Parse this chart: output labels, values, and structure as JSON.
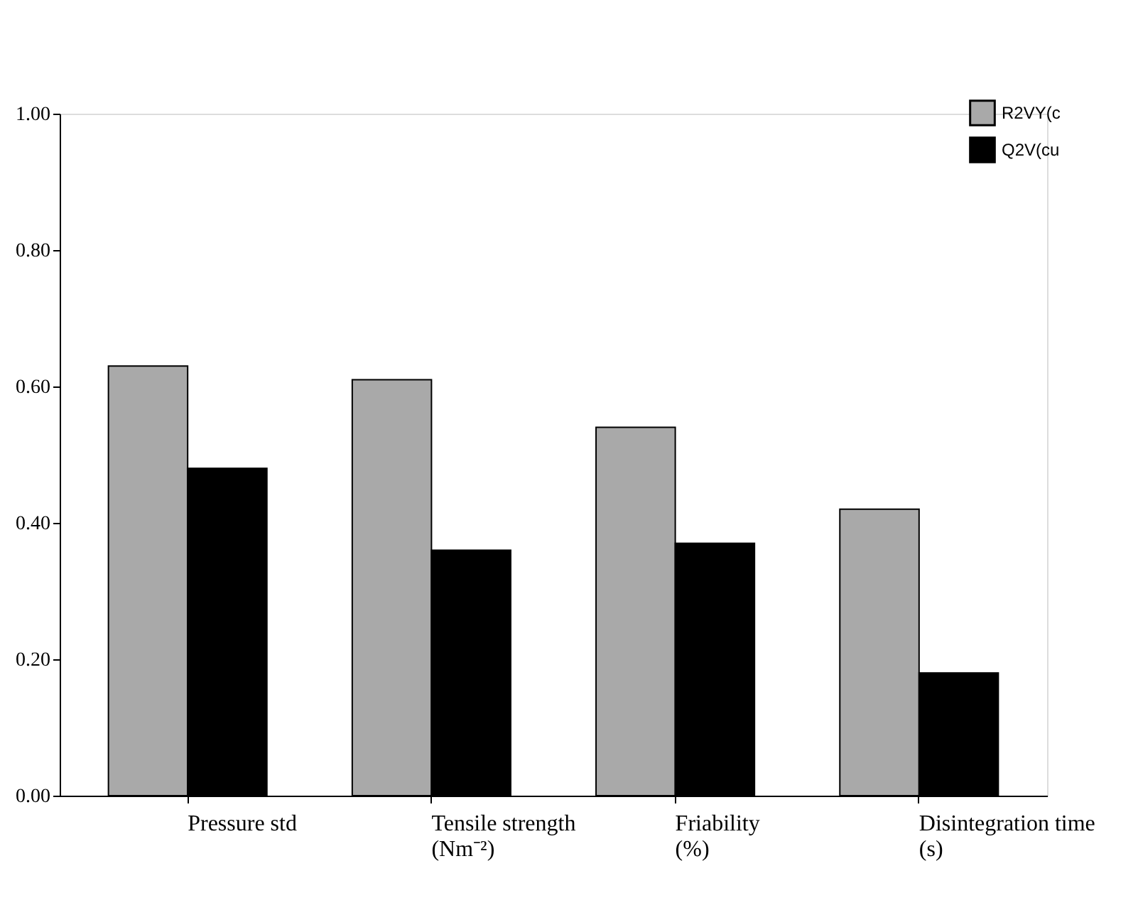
{
  "chart_data": {
    "type": "bar",
    "categories": [
      "Pressure std",
      "Tensile strength\n(Nm⁻²)",
      "Friability\n(%)",
      "Disintegration time\n(s)"
    ],
    "series": [
      {
        "name": "R2VY(c",
        "color": "#a9a9a9",
        "values": [
          0.63,
          0.61,
          0.54,
          0.42
        ]
      },
      {
        "name": "Q2V(cu",
        "color": "#000000",
        "values": [
          0.48,
          0.36,
          0.37,
          0.18
        ]
      }
    ],
    "ylim": [
      0,
      1
    ],
    "yticks": [
      {
        "value": 0,
        "label": "0.00"
      },
      {
        "value": 0.2,
        "label": "0.20"
      },
      {
        "value": 0.4,
        "label": "0.40"
      },
      {
        "value": 0.6,
        "label": "0.60"
      },
      {
        "value": 0.8,
        "label": "0.80"
      },
      {
        "value": 1,
        "label": "1.00"
      }
    ],
    "grid": false,
    "legend": "top right"
  }
}
